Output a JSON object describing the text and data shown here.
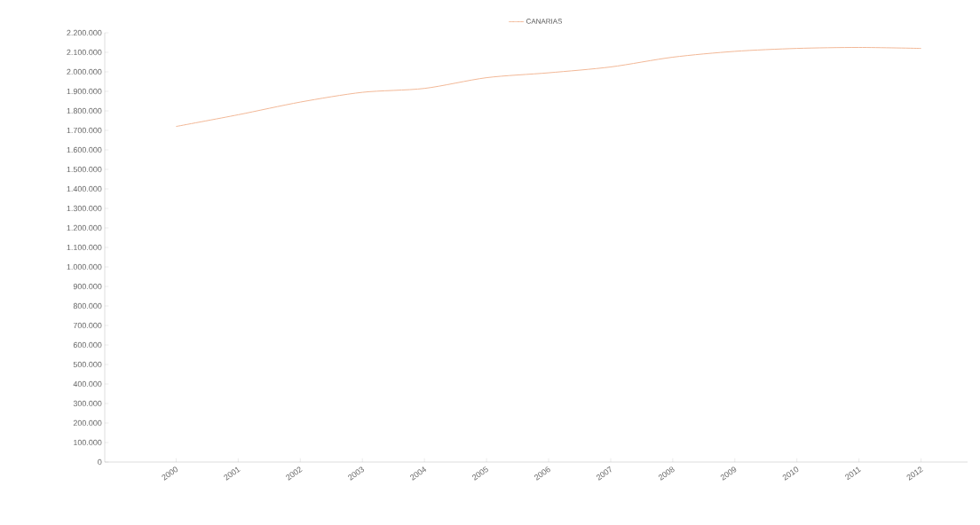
{
  "chart_data": {
    "type": "line",
    "categories": [
      "2000",
      "2001",
      "2002",
      "2003",
      "2004",
      "2005",
      "2006",
      "2007",
      "2008",
      "2009",
      "2010",
      "2011",
      "2012"
    ],
    "series": [
      {
        "name": "CANARIAS",
        "color": "#f2b897",
        "values": [
          1720000,
          1780000,
          1845000,
          1895000,
          1915000,
          1970000,
          1995000,
          2025000,
          2075000,
          2105000,
          2120000,
          2125000,
          2120000
        ]
      }
    ],
    "ylim": [
      0,
      2200000
    ],
    "yticks": [
      {
        "value": 0,
        "label": "0"
      },
      {
        "value": 100000,
        "label": "100.000"
      },
      {
        "value": 200000,
        "label": "200.000"
      },
      {
        "value": 300000,
        "label": "300.000"
      },
      {
        "value": 400000,
        "label": "400.000"
      },
      {
        "value": 500000,
        "label": "500.000"
      },
      {
        "value": 600000,
        "label": "600.000"
      },
      {
        "value": 700000,
        "label": "700.000"
      },
      {
        "value": 800000,
        "label": "800.000"
      },
      {
        "value": 900000,
        "label": "900.000"
      },
      {
        "value": 1000000,
        "label": "1.000.000"
      },
      {
        "value": 1100000,
        "label": "1.100.000"
      },
      {
        "value": 1200000,
        "label": "1.200.000"
      },
      {
        "value": 1300000,
        "label": "1.300.000"
      },
      {
        "value": 1400000,
        "label": "1.400.000"
      },
      {
        "value": 1500000,
        "label": "1.500.000"
      },
      {
        "value": 1600000,
        "label": "1.600.000"
      },
      {
        "value": 1700000,
        "label": "1.700.000"
      },
      {
        "value": 1800000,
        "label": "1.800.000"
      },
      {
        "value": 1900000,
        "label": "1.900.000"
      },
      {
        "value": 2000000,
        "label": "2.000.000"
      },
      {
        "value": 2100000,
        "label": "2.100.000"
      },
      {
        "value": 2200000,
        "label": "2.200.000"
      }
    ],
    "legend": "top"
  }
}
